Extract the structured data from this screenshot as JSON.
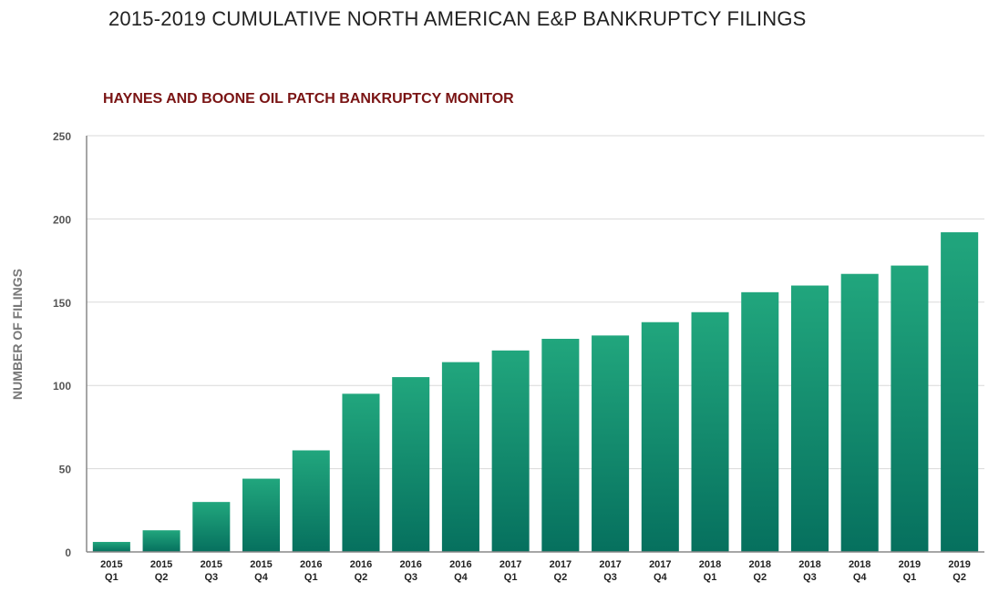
{
  "chart_data": {
    "type": "bar",
    "title": "2015-2019 CUMULATIVE NORTH AMERICAN E&P BANKRUPTCY FILINGS",
    "subtitle": "HAYNES AND BOONE OIL PATCH BANKRUPTCY MONITOR",
    "xlabel": "",
    "ylabel": "NUMBER OF FILINGS",
    "ylim": [
      0,
      250
    ],
    "yticks": [
      0,
      50,
      100,
      150,
      200,
      250
    ],
    "grid": true,
    "categories": [
      [
        "2015",
        "Q1"
      ],
      [
        "2015",
        "Q2"
      ],
      [
        "2015",
        "Q3"
      ],
      [
        "2015",
        "Q4"
      ],
      [
        "2016",
        "Q1"
      ],
      [
        "2016",
        "Q2"
      ],
      [
        "2016",
        "Q3"
      ],
      [
        "2016",
        "Q4"
      ],
      [
        "2017",
        "Q1"
      ],
      [
        "2017",
        "Q2"
      ],
      [
        "2017",
        "Q3"
      ],
      [
        "2017",
        "Q4"
      ],
      [
        "2018",
        "Q1"
      ],
      [
        "2018",
        "Q2"
      ],
      [
        "2018",
        "Q3"
      ],
      [
        "2018",
        "Q4"
      ],
      [
        "2019",
        "Q1"
      ],
      [
        "2019",
        "Q2"
      ]
    ],
    "values": [
      6,
      13,
      30,
      44,
      61,
      95,
      105,
      114,
      121,
      128,
      130,
      138,
      144,
      156,
      160,
      167,
      172,
      192
    ],
    "colors": {
      "bar_top": "#21a67d",
      "bar_bottom": "#06705e",
      "subtitle": "#7a1414"
    }
  }
}
